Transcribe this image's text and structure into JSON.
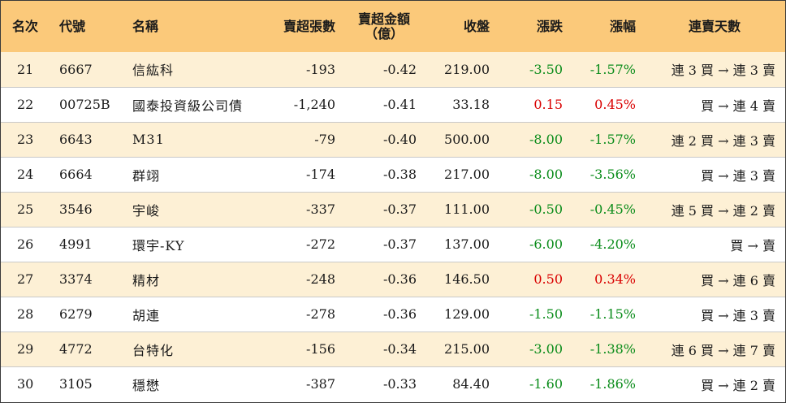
{
  "headers": {
    "rank": "名次",
    "code": "代號",
    "name": "名稱",
    "net_sell_lots": "賣超張數",
    "net_sell_amount": "賣超金額",
    "net_sell_amount_unit": "（億）",
    "close": "收盤",
    "change": "漲跌",
    "change_pct": "漲幅",
    "streak": "連賣天數"
  },
  "colors": {
    "header_bg": "#fbc97a",
    "stripe_bg": "#fdf0d5",
    "up": "#d90000",
    "down": "#0a8c1a"
  },
  "rows": [
    {
      "rank": "21",
      "code": "6667",
      "name": "信紘科",
      "lots": "-193",
      "amount": "-0.42",
      "close": "219.00",
      "change": "-3.50",
      "pct": "-1.57%",
      "dir": "down",
      "streak": "連 3 買 → 連 3 賣"
    },
    {
      "rank": "22",
      "code": "00725B",
      "name": "國泰投資級公司債",
      "lots": "-1,240",
      "amount": "-0.41",
      "close": "33.18",
      "change": "0.15",
      "pct": "0.45%",
      "dir": "up",
      "streak": "買 → 連 4 賣"
    },
    {
      "rank": "23",
      "code": "6643",
      "name": "M31",
      "lots": "-79",
      "amount": "-0.40",
      "close": "500.00",
      "change": "-8.00",
      "pct": "-1.57%",
      "dir": "down",
      "streak": "連 2 買 → 連 3 賣"
    },
    {
      "rank": "24",
      "code": "6664",
      "name": "群翊",
      "lots": "-174",
      "amount": "-0.38",
      "close": "217.00",
      "change": "-8.00",
      "pct": "-3.56%",
      "dir": "down",
      "streak": "買 → 連 3 賣"
    },
    {
      "rank": "25",
      "code": "3546",
      "name": "宇峻",
      "lots": "-337",
      "amount": "-0.37",
      "close": "111.00",
      "change": "-0.50",
      "pct": "-0.45%",
      "dir": "down",
      "streak": "連 5 買 → 連 2 賣"
    },
    {
      "rank": "26",
      "code": "4991",
      "name": "環宇-KY",
      "lots": "-272",
      "amount": "-0.37",
      "close": "137.00",
      "change": "-6.00",
      "pct": "-4.20%",
      "dir": "down",
      "streak": "買 → 賣"
    },
    {
      "rank": "27",
      "code": "3374",
      "name": "精材",
      "lots": "-248",
      "amount": "-0.36",
      "close": "146.50",
      "change": "0.50",
      "pct": "0.34%",
      "dir": "up",
      "streak": "買 → 連 6 賣"
    },
    {
      "rank": "28",
      "code": "6279",
      "name": "胡連",
      "lots": "-278",
      "amount": "-0.36",
      "close": "129.00",
      "change": "-1.50",
      "pct": "-1.15%",
      "dir": "down",
      "streak": "買 → 連 3 賣"
    },
    {
      "rank": "29",
      "code": "4772",
      "name": "台特化",
      "lots": "-156",
      "amount": "-0.34",
      "close": "215.00",
      "change": "-3.00",
      "pct": "-1.38%",
      "dir": "down",
      "streak": "連 6 買 → 連 7 賣"
    },
    {
      "rank": "30",
      "code": "3105",
      "name": "穩懋",
      "lots": "-387",
      "amount": "-0.33",
      "close": "84.40",
      "change": "-1.60",
      "pct": "-1.86%",
      "dir": "down",
      "streak": "買 → 連 2 賣"
    }
  ]
}
